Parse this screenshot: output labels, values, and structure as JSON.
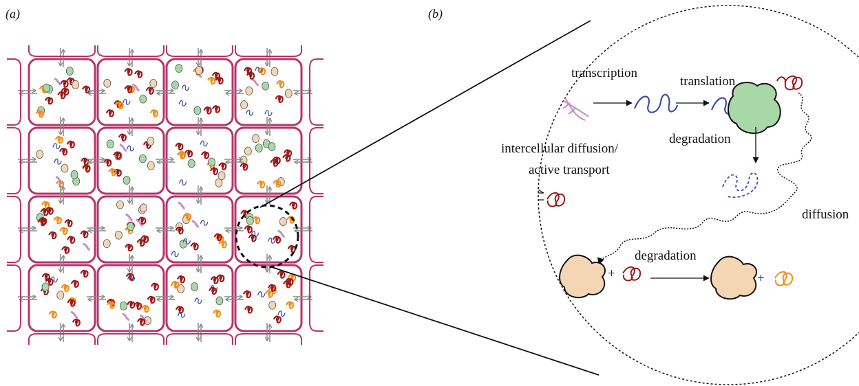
{
  "panel_a": {
    "label": "(a)"
  },
  "panel_b": {
    "label": "(b)",
    "transcription": "transcription",
    "translation": "translation",
    "degradation_mrna": "degradation",
    "intercellular_line1": "intercellular diffusion/",
    "intercellular_line2": "active transport",
    "diffusion": "diffusion",
    "plus_1": "+",
    "degradation_protein": "degradation",
    "plus_2": "+"
  }
}
